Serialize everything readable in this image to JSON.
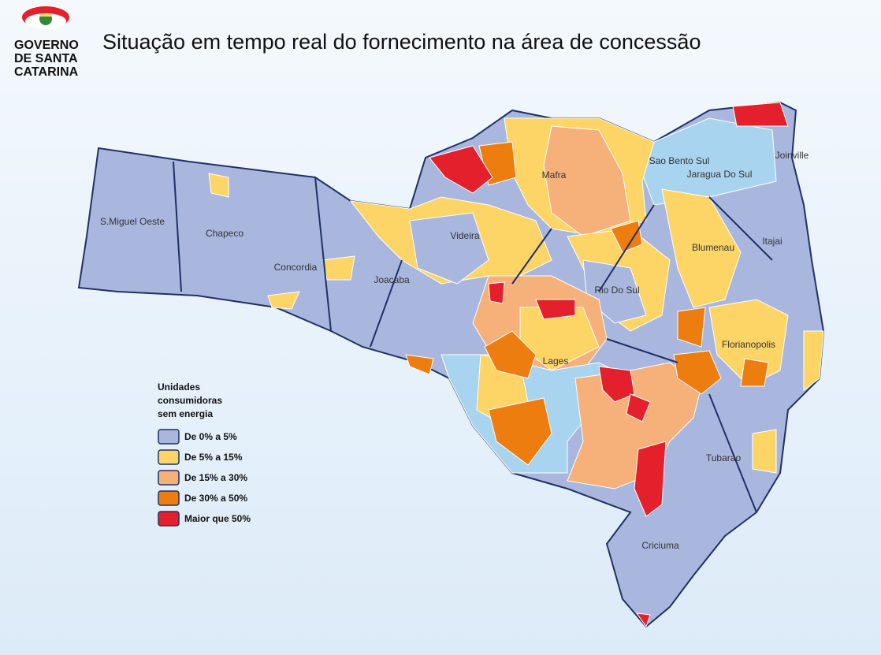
{
  "header": {
    "logo": [
      "GOVERNO",
      "DE SANTA",
      "CATARINA"
    ],
    "title": "Situação em tempo real do fornecimento na área de concessão"
  },
  "legend": {
    "title": [
      "Unidades",
      "consumidoras",
      "sem energia"
    ],
    "items": [
      {
        "label": "De 0% a 5%",
        "color": "#a9b7df"
      },
      {
        "label": "De 5% a 15%",
        "color": "#fdd466"
      },
      {
        "label": "De 15% a 30%",
        "color": "#f6b07a"
      },
      {
        "label": "De 30% a 50%",
        "color": "#ee7d10"
      },
      {
        "label": "Maior que 50%",
        "color": "#e3202b"
      }
    ]
  },
  "cities": [
    "S.Miguel Oeste",
    "Chapeco",
    "Concordia",
    "Joacaba",
    "Videira",
    "Mafra",
    "Sao Bento Sul",
    "Jaragua Do Sul",
    "Joinville",
    "Blumenau",
    "Itajai",
    "Rio Do Sul",
    "Lages",
    "Florianopolis",
    "Tubarao",
    "Criciuma"
  ]
}
